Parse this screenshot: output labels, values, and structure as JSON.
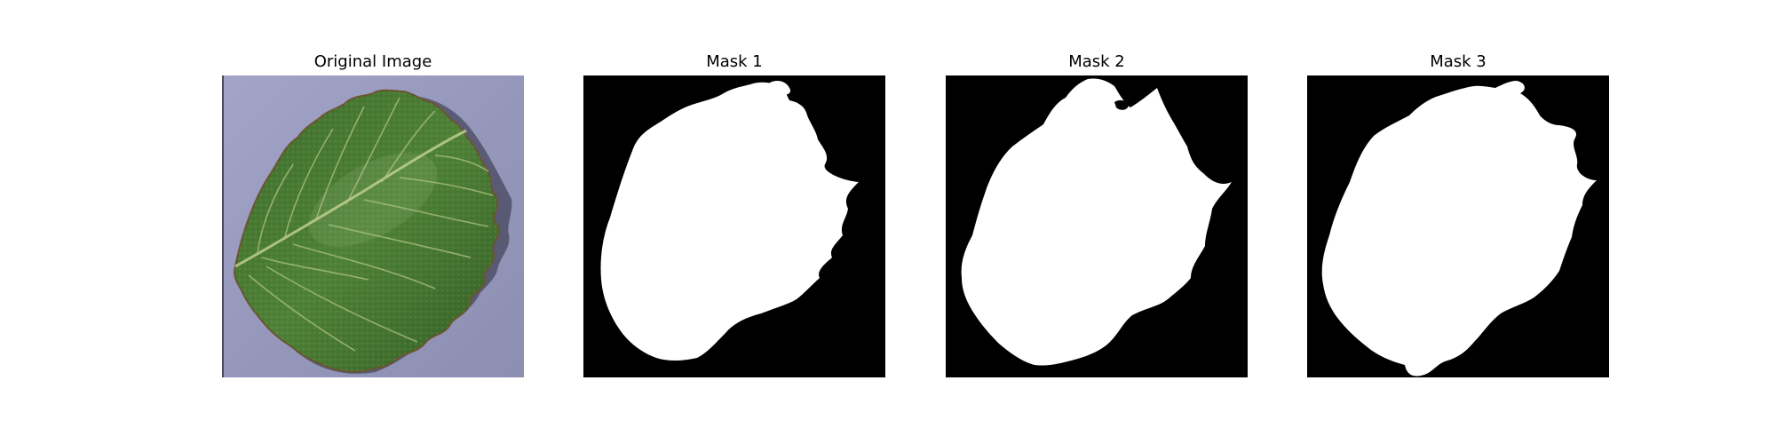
{
  "figure": {
    "panels": [
      {
        "title": "Original Image",
        "kind": "photo",
        "subject": "leaf-photo"
      },
      {
        "title": "Mask 1",
        "kind": "mask"
      },
      {
        "title": "Mask 2",
        "kind": "mask"
      },
      {
        "title": "Mask 3",
        "kind": "mask"
      }
    ]
  },
  "colors": {
    "page_background": "#ffffff",
    "mask_background": "#000000",
    "mask_foreground": "#ffffff",
    "photo_background": "#9a9cc0",
    "leaf_dark": "#2f5a22",
    "leaf_mid": "#4a7e34",
    "leaf_light": "#6e9a55",
    "vein": "#b8c98a",
    "leaf_edge": "#6a5530"
  }
}
